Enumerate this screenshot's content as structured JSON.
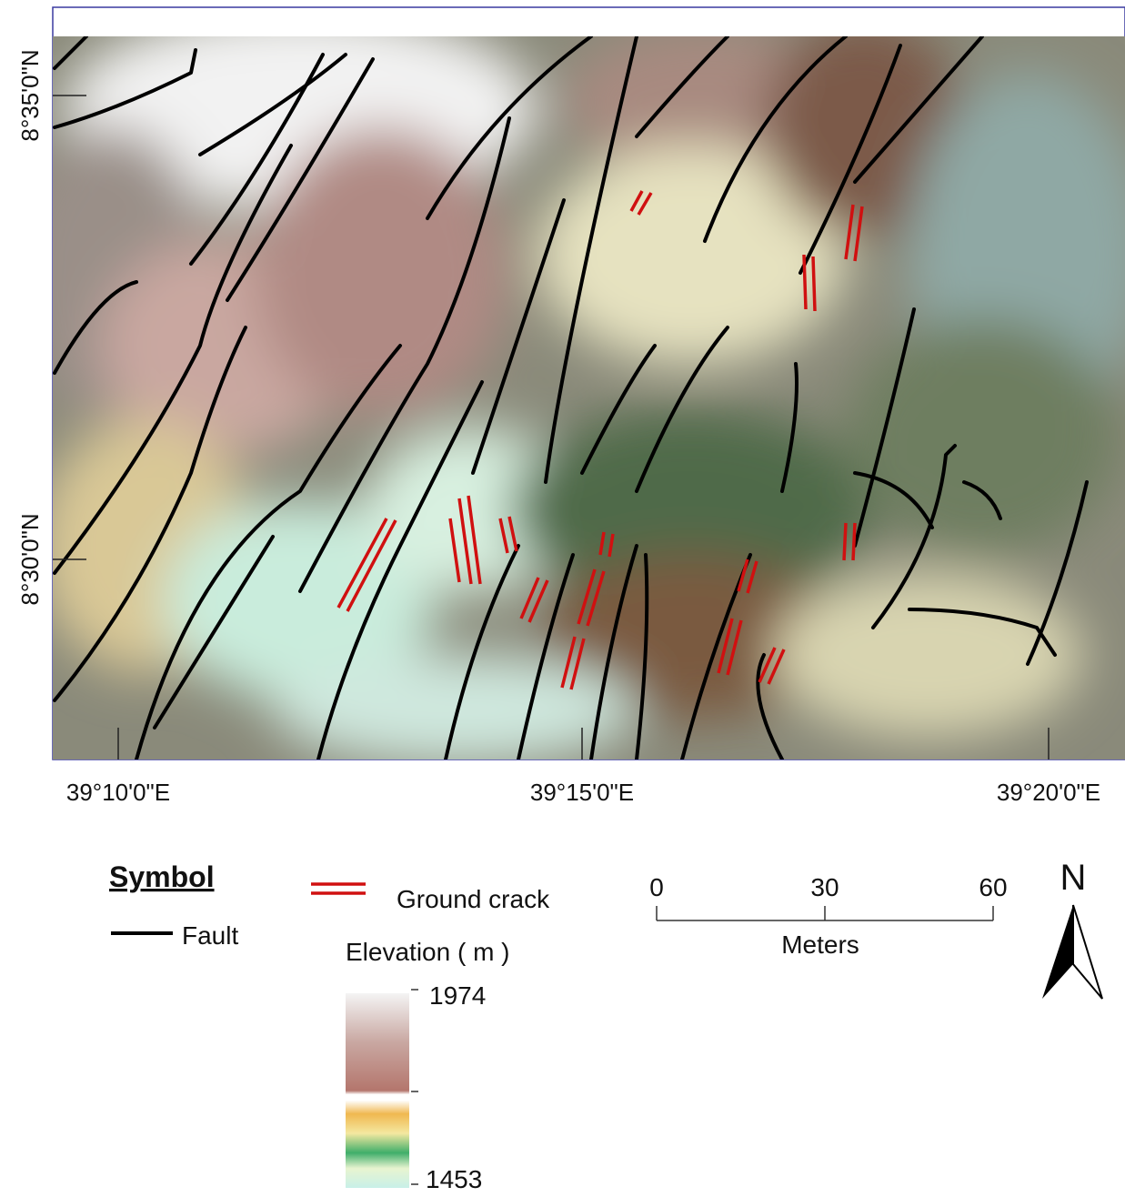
{
  "map": {
    "lat_labels": [
      "8°35'0\"N",
      "8°30'0\"N"
    ],
    "lon_labels": [
      "39°10'0\"E",
      "39°15'0\"E",
      "39°20'0\"E"
    ],
    "legend": {
      "title": "Symbol",
      "fault": "Fault",
      "ground_crack": "Ground crack",
      "elevation_title": "Elevation ( m )",
      "elevation_max": 1974,
      "elevation_min": 1453
    },
    "scale_bar": {
      "ticks": [
        0,
        30,
        60
      ],
      "unit": "Meters"
    },
    "north": "N"
  }
}
